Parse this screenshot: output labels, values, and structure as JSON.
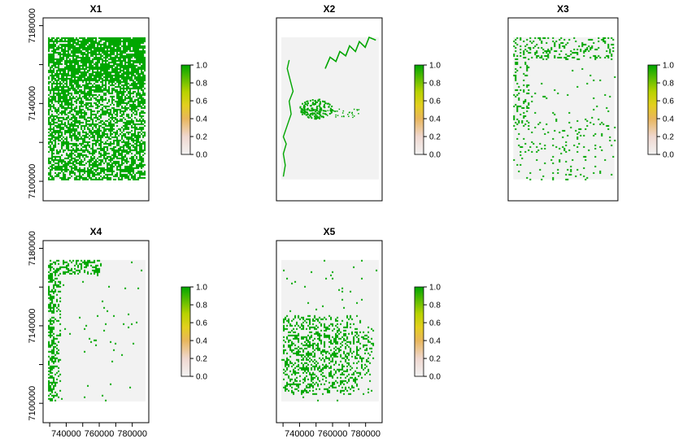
{
  "chart_data": [
    {
      "type": "heatmap",
      "title": "X1",
      "xlabel": "",
      "ylabel": "",
      "extent": {
        "x": [
          729000,
          788000
        ],
        "y": [
          7101000,
          7174000
        ]
      },
      "axes": {
        "x": [
          726000,
          790000
        ],
        "y": [
          7090000,
          7184000
        ]
      },
      "x_ticks": [],
      "y_ticks": [
        "7100000",
        "7140000",
        "7180000"
      ],
      "zlim": [
        0,
        1
      ],
      "colorbar": {
        "ticks": [
          "0.0",
          "0.2",
          "0.4",
          "0.6",
          "0.8",
          "1.0"
        ]
      },
      "description_values": {
        "background": 0,
        "presence": 1
      },
      "pattern": "dense"
    },
    {
      "type": "heatmap",
      "title": "X2",
      "xlabel": "",
      "ylabel": "",
      "extent": {
        "x": [
          729000,
          788000
        ],
        "y": [
          7101000,
          7174000
        ]
      },
      "axes": {
        "x": [
          726000,
          790000
        ],
        "y": [
          7090000,
          7184000
        ]
      },
      "x_ticks": [],
      "y_ticks": [],
      "zlim": [
        0,
        1
      ],
      "colorbar": {
        "ticks": [
          "0.0",
          "0.2",
          "0.4",
          "0.6",
          "0.8",
          "1.0"
        ]
      },
      "pattern": "river"
    },
    {
      "type": "heatmap",
      "title": "X3",
      "xlabel": "",
      "ylabel": "",
      "extent": {
        "x": [
          729000,
          788000
        ],
        "y": [
          7101000,
          7174000
        ]
      },
      "axes": {
        "x": [
          726000,
          790000
        ],
        "y": [
          7090000,
          7184000
        ]
      },
      "x_ticks": [],
      "y_ticks": [],
      "zlim": [
        0,
        1
      ],
      "colorbar": {
        "ticks": [
          "0.0",
          "0.2",
          "0.4",
          "0.6",
          "0.8",
          "1.0"
        ]
      },
      "pattern": "sparse-edge"
    },
    {
      "type": "heatmap",
      "title": "X4",
      "xlabel": "",
      "ylabel": "",
      "extent": {
        "x": [
          729000,
          788000
        ],
        "y": [
          7101000,
          7174000
        ]
      },
      "axes": {
        "x": [
          726000,
          790000
        ],
        "y": [
          7090000,
          7184000
        ]
      },
      "x_ticks": [
        "740000",
        "760000",
        "780000"
      ],
      "y_ticks": [
        "7100000",
        "7140000",
        "7180000"
      ],
      "zlim": [
        0,
        1
      ],
      "colorbar": {
        "ticks": [
          "0.0",
          "0.2",
          "0.4",
          "0.6",
          "0.8",
          "1.0"
        ]
      },
      "pattern": "left-edge"
    },
    {
      "type": "heatmap",
      "title": "X5",
      "xlabel": "",
      "ylabel": "",
      "extent": {
        "x": [
          729000,
          788000
        ],
        "y": [
          7101000,
          7174000
        ]
      },
      "axes": {
        "x": [
          726000,
          790000
        ],
        "y": [
          7090000,
          7184000
        ]
      },
      "x_ticks": [
        "740000",
        "760000",
        "780000"
      ],
      "y_ticks": [],
      "zlim": [
        0,
        1
      ],
      "colorbar": {
        "ticks": [
          "0.0",
          "0.2",
          "0.4",
          "0.6",
          "0.8",
          "1.0"
        ]
      },
      "pattern": "lower-cluster"
    }
  ],
  "colors": {
    "background_cell": "#f2f2f2",
    "presence_cell": "#00a600",
    "colorbar_stops": [
      "#f2f2f2",
      "#f0c9c0",
      "#e6b040",
      "#ffff00",
      "#00a600"
    ]
  }
}
